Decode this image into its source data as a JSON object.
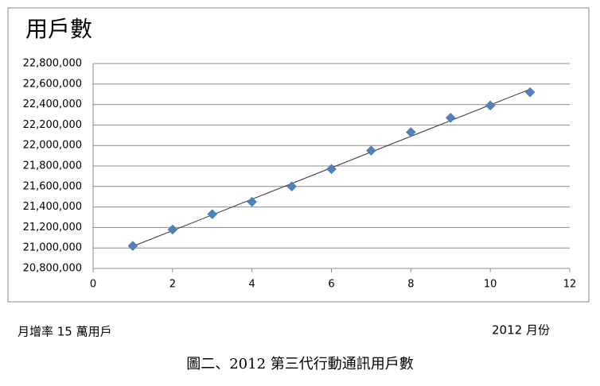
{
  "chart_data": {
    "type": "scatter",
    "title": "用戶數",
    "x": [
      1,
      2,
      3,
      4,
      5,
      6,
      7,
      8,
      9,
      10,
      11
    ],
    "values": [
      21020000,
      21180000,
      21330000,
      21450000,
      21600000,
      21770000,
      21950000,
      22130000,
      22270000,
      22390000,
      22520000
    ],
    "color": "#4f81bd",
    "trendline": "linear",
    "grid": true,
    "xlim": [
      0,
      12
    ],
    "xticks": [
      0,
      2,
      4,
      6,
      8,
      10,
      12
    ],
    "ylim": [
      20800000,
      22800000
    ],
    "yticks": [
      {
        "value": 20800000,
        "label": "20,800,000"
      },
      {
        "value": 21000000,
        "label": "21,000,000"
      },
      {
        "value": 21200000,
        "label": "21,200,000"
      },
      {
        "value": 21400000,
        "label": "21,400,000"
      },
      {
        "value": 21600000,
        "label": "21,600,000"
      },
      {
        "value": 21800000,
        "label": "21,800,000"
      },
      {
        "value": 22000000,
        "label": "22,000,000"
      },
      {
        "value": 22200000,
        "label": "22,200,000"
      },
      {
        "value": 22400000,
        "label": "22,400,000"
      },
      {
        "value": 22600000,
        "label": "22,600,000"
      },
      {
        "value": 22800000,
        "label": "22,800,000"
      }
    ],
    "annotation": "月增率 15 萬用戶",
    "xlabel": "2012 月份",
    "caption": "圖二、2012 第三代行動通訊用戶數"
  }
}
